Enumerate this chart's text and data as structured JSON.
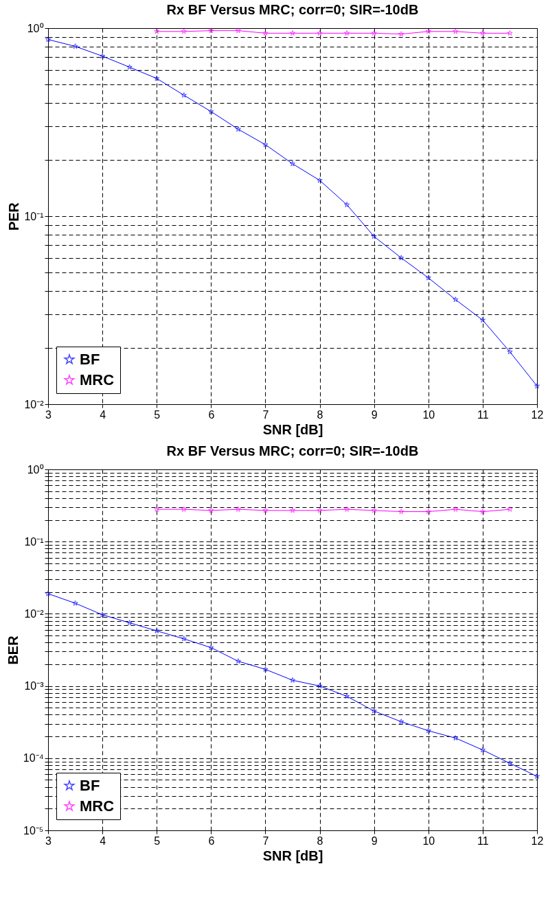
{
  "chart_data": [
    {
      "type": "line",
      "title": "Rx BF Versus MRC; corr=0; SIR=-10dB",
      "xlabel": "SNR [dB]",
      "ylabel": "PER",
      "log": "y",
      "grid": true,
      "legend": "bottom left",
      "marker": "star",
      "line_style": "solid",
      "xlim": [
        3,
        12
      ],
      "xticks": [
        3,
        4,
        5,
        6,
        7,
        8,
        9,
        10,
        11,
        12
      ],
      "ylim": [
        0.01,
        1
      ],
      "yticks": [
        {
          "value": 0.01,
          "label": "10⁻²"
        },
        {
          "value": 0.02,
          "label": null
        },
        {
          "value": 0.03,
          "label": null
        },
        {
          "value": 0.04,
          "label": null
        },
        {
          "value": 0.05,
          "label": null
        },
        {
          "value": 0.06,
          "label": null
        },
        {
          "value": 0.07,
          "label": null
        },
        {
          "value": 0.08,
          "label": null
        },
        {
          "value": 0.09,
          "label": null
        },
        {
          "value": 0.1,
          "label": "10⁻¹"
        },
        {
          "value": 0.2,
          "label": null
        },
        {
          "value": 0.3,
          "label": null
        },
        {
          "value": 0.4,
          "label": null
        },
        {
          "value": 0.5,
          "label": null
        },
        {
          "value": 0.6,
          "label": null
        },
        {
          "value": 0.7,
          "label": null
        },
        {
          "value": 0.8,
          "label": null
        },
        {
          "value": 0.9,
          "label": null
        },
        {
          "value": 1,
          "label": "10⁰"
        }
      ],
      "series": [
        {
          "name": "BF",
          "color": "#0000ff",
          "x": [
            3,
            3.5,
            4,
            4.5,
            5,
            5.5,
            6,
            6.5,
            7,
            7.5,
            8,
            8.5,
            9,
            9.5,
            10,
            10.5,
            11,
            11.5,
            12
          ],
          "values": [
            0.87,
            0.8,
            0.71,
            0.62,
            0.54,
            0.44,
            0.36,
            0.29,
            0.24,
            0.19,
            0.155,
            0.115,
            0.078,
            0.06,
            0.047,
            0.036,
            0.028,
            0.019,
            0.0125
          ]
        },
        {
          "name": "MRC",
          "color": "#ff00ff",
          "x": [
            5,
            5.5,
            6,
            6.5,
            7,
            7.5,
            8,
            8.5,
            9,
            9.5,
            10,
            10.5,
            11,
            11.5
          ],
          "values": [
            0.96,
            0.96,
            0.97,
            0.97,
            0.94,
            0.94,
            0.94,
            0.94,
            0.94,
            0.93,
            0.96,
            0.96,
            0.94,
            0.94
          ]
        }
      ]
    },
    {
      "type": "line",
      "title": "Rx BF Versus MRC; corr=0; SIR=-10dB",
      "xlabel": "SNR [dB]",
      "ylabel": "BER",
      "log": "y",
      "grid": true,
      "legend": "bottom left",
      "marker": "star",
      "line_style": "solid",
      "xlim": [
        3,
        12
      ],
      "xticks": [
        3,
        4,
        5,
        6,
        7,
        8,
        9,
        10,
        11,
        12
      ],
      "ylim": [
        1e-05,
        1
      ],
      "yticks": [
        {
          "value": 1e-05,
          "label": "10⁻⁵"
        },
        {
          "value": 2e-05,
          "label": null
        },
        {
          "value": 3e-05,
          "label": null
        },
        {
          "value": 4e-05,
          "label": null
        },
        {
          "value": 5e-05,
          "label": null
        },
        {
          "value": 6e-05,
          "label": null
        },
        {
          "value": 7e-05,
          "label": null
        },
        {
          "value": 8e-05,
          "label": null
        },
        {
          "value": 9e-05,
          "label": null
        },
        {
          "value": 0.0001,
          "label": "10⁻⁴"
        },
        {
          "value": 0.0002,
          "label": null
        },
        {
          "value": 0.0003,
          "label": null
        },
        {
          "value": 0.0004,
          "label": null
        },
        {
          "value": 0.0005,
          "label": null
        },
        {
          "value": 0.0006,
          "label": null
        },
        {
          "value": 0.0007,
          "label": null
        },
        {
          "value": 0.0008,
          "label": null
        },
        {
          "value": 0.0009,
          "label": null
        },
        {
          "value": 0.001,
          "label": "10⁻³"
        },
        {
          "value": 0.002,
          "label": null
        },
        {
          "value": 0.003,
          "label": null
        },
        {
          "value": 0.004,
          "label": null
        },
        {
          "value": 0.005,
          "label": null
        },
        {
          "value": 0.006,
          "label": null
        },
        {
          "value": 0.007,
          "label": null
        },
        {
          "value": 0.008,
          "label": null
        },
        {
          "value": 0.009,
          "label": null
        },
        {
          "value": 0.01,
          "label": "10⁻²"
        },
        {
          "value": 0.02,
          "label": null
        },
        {
          "value": 0.03,
          "label": null
        },
        {
          "value": 0.04,
          "label": null
        },
        {
          "value": 0.05,
          "label": null
        },
        {
          "value": 0.06,
          "label": null
        },
        {
          "value": 0.07,
          "label": null
        },
        {
          "value": 0.08,
          "label": null
        },
        {
          "value": 0.09,
          "label": null
        },
        {
          "value": 0.1,
          "label": "10⁻¹"
        },
        {
          "value": 0.2,
          "label": null
        },
        {
          "value": 0.3,
          "label": null
        },
        {
          "value": 0.4,
          "label": null
        },
        {
          "value": 0.5,
          "label": null
        },
        {
          "value": 0.6,
          "label": null
        },
        {
          "value": 0.7,
          "label": null
        },
        {
          "value": 0.8,
          "label": null
        },
        {
          "value": 0.9,
          "label": null
        },
        {
          "value": 1,
          "label": "10⁰"
        }
      ],
      "series": [
        {
          "name": "BF",
          "color": "#0000ff",
          "x": [
            3,
            3.5,
            4,
            4.5,
            5,
            5.5,
            6,
            6.5,
            7,
            7.5,
            8,
            8.5,
            9,
            9.5,
            10,
            10.5,
            11,
            11.5,
            12
          ],
          "values": [
            0.019,
            0.014,
            0.0097,
            0.0075,
            0.0058,
            0.0045,
            0.0034,
            0.0022,
            0.0017,
            0.0012,
            0.001,
            0.00072,
            0.00045,
            0.00032,
            0.00024,
            0.00019,
            0.00013,
            8.5e-05,
            5.6e-05
          ]
        },
        {
          "name": "MRC",
          "color": "#ff00ff",
          "x": [
            5,
            5.5,
            6,
            6.5,
            7,
            7.5,
            8,
            8.5,
            9,
            9.5,
            10,
            10.5,
            11,
            11.5
          ],
          "values": [
            0.28,
            0.28,
            0.27,
            0.28,
            0.27,
            0.27,
            0.27,
            0.28,
            0.27,
            0.26,
            0.26,
            0.28,
            0.26,
            0.28
          ]
        }
      ]
    }
  ]
}
